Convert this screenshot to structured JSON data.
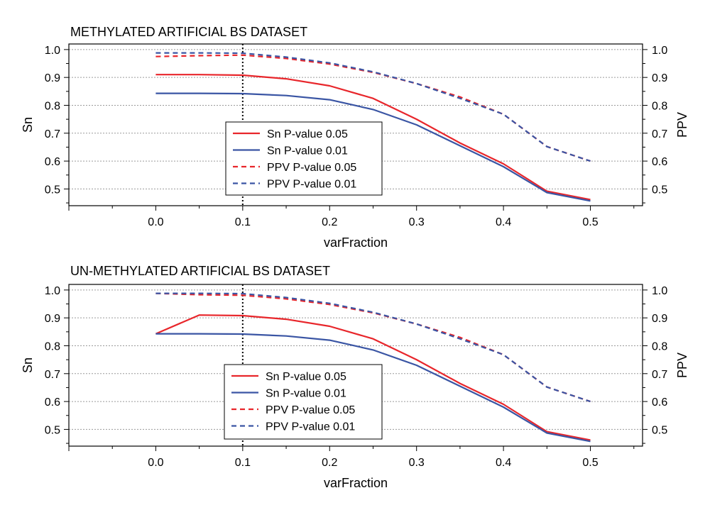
{
  "colors": {
    "red": "#e8262b",
    "blue": "#3a55a4",
    "grid": "#9a9a9a"
  },
  "chart_data": [
    {
      "type": "line",
      "title": "METHYLATED ARTIFICIAL BS DATASET",
      "xlabel": "varFraction",
      "ylabel": "Sn",
      "y2label": "PPV",
      "xlim": [
        -0.1,
        0.56
      ],
      "ylim": [
        0.44,
        1.02
      ],
      "xticks": [
        "0.0",
        "0.1",
        "0.2",
        "0.3",
        "0.4",
        "0.5"
      ],
      "yticks": [
        "0.5",
        "0.6",
        "0.7",
        "0.8",
        "0.9",
        "1.0"
      ],
      "y2ticks": [
        "0.5",
        "0.6",
        "0.7",
        "0.8",
        "0.9",
        "1.0"
      ],
      "vline_x": 0.1,
      "grid": true,
      "legend_position": "center",
      "x": [
        0.0,
        0.05,
        0.1,
        0.15,
        0.2,
        0.25,
        0.3,
        0.35,
        0.4,
        0.45,
        0.5
      ],
      "series": [
        {
          "name": "Sn P-value 0.05",
          "color": "#e8262b",
          "style": "solid",
          "values": [
            0.91,
            0.91,
            0.908,
            0.895,
            0.87,
            0.825,
            0.75,
            0.665,
            0.59,
            0.492,
            0.462
          ]
        },
        {
          "name": "Sn P-value 0.01",
          "color": "#3a55a4",
          "style": "solid",
          "values": [
            0.843,
            0.843,
            0.842,
            0.835,
            0.82,
            0.785,
            0.73,
            0.655,
            0.58,
            0.487,
            0.457
          ]
        },
        {
          "name": "PPV P-value 0.05",
          "color": "#e8262b",
          "style": "dashed",
          "values": [
            0.975,
            0.978,
            0.98,
            0.968,
            0.948,
            0.918,
            0.878,
            0.83,
            0.768,
            0.652,
            0.6
          ]
        },
        {
          "name": "PPV P-value 0.01",
          "color": "#3a55a4",
          "style": "dashed",
          "values": [
            0.988,
            0.988,
            0.987,
            0.973,
            0.952,
            0.92,
            0.878,
            0.825,
            0.768,
            0.652,
            0.6
          ]
        }
      ]
    },
    {
      "type": "line",
      "title": "UN-METHYLATED ARTIFICIAL BS DATASET",
      "xlabel": "varFraction",
      "ylabel": "Sn",
      "y2label": "PPV",
      "xlim": [
        -0.1,
        0.56
      ],
      "ylim": [
        0.44,
        1.02
      ],
      "xticks": [
        "0.0",
        "0.1",
        "0.2",
        "0.3",
        "0.4",
        "0.5"
      ],
      "yticks": [
        "0.5",
        "0.6",
        "0.7",
        "0.8",
        "0.9",
        "1.0"
      ],
      "y2ticks": [
        "0.5",
        "0.6",
        "0.7",
        "0.8",
        "0.9",
        "1.0"
      ],
      "vline_x": 0.1,
      "grid": true,
      "legend_position": "center",
      "x": [
        0.0,
        0.05,
        0.1,
        0.15,
        0.2,
        0.25,
        0.3,
        0.35,
        0.4,
        0.45,
        0.5
      ],
      "series": [
        {
          "name": "Sn P-value 0.05",
          "color": "#e8262b",
          "style": "solid",
          "values": [
            0.843,
            0.91,
            0.908,
            0.895,
            0.87,
            0.825,
            0.75,
            0.665,
            0.59,
            0.492,
            0.462
          ]
        },
        {
          "name": "Sn P-value 0.01",
          "color": "#3a55a4",
          "style": "solid",
          "values": [
            0.843,
            0.843,
            0.842,
            0.835,
            0.82,
            0.785,
            0.73,
            0.655,
            0.58,
            0.487,
            0.457
          ]
        },
        {
          "name": "PPV P-value 0.05",
          "color": "#e8262b",
          "style": "dashed",
          "values": [
            0.988,
            0.983,
            0.981,
            0.968,
            0.948,
            0.918,
            0.878,
            0.83,
            0.768,
            0.652,
            0.6
          ]
        },
        {
          "name": "PPV P-value 0.01",
          "color": "#3a55a4",
          "style": "dashed",
          "values": [
            0.988,
            0.988,
            0.987,
            0.973,
            0.952,
            0.92,
            0.878,
            0.825,
            0.768,
            0.652,
            0.6
          ]
        }
      ]
    }
  ]
}
